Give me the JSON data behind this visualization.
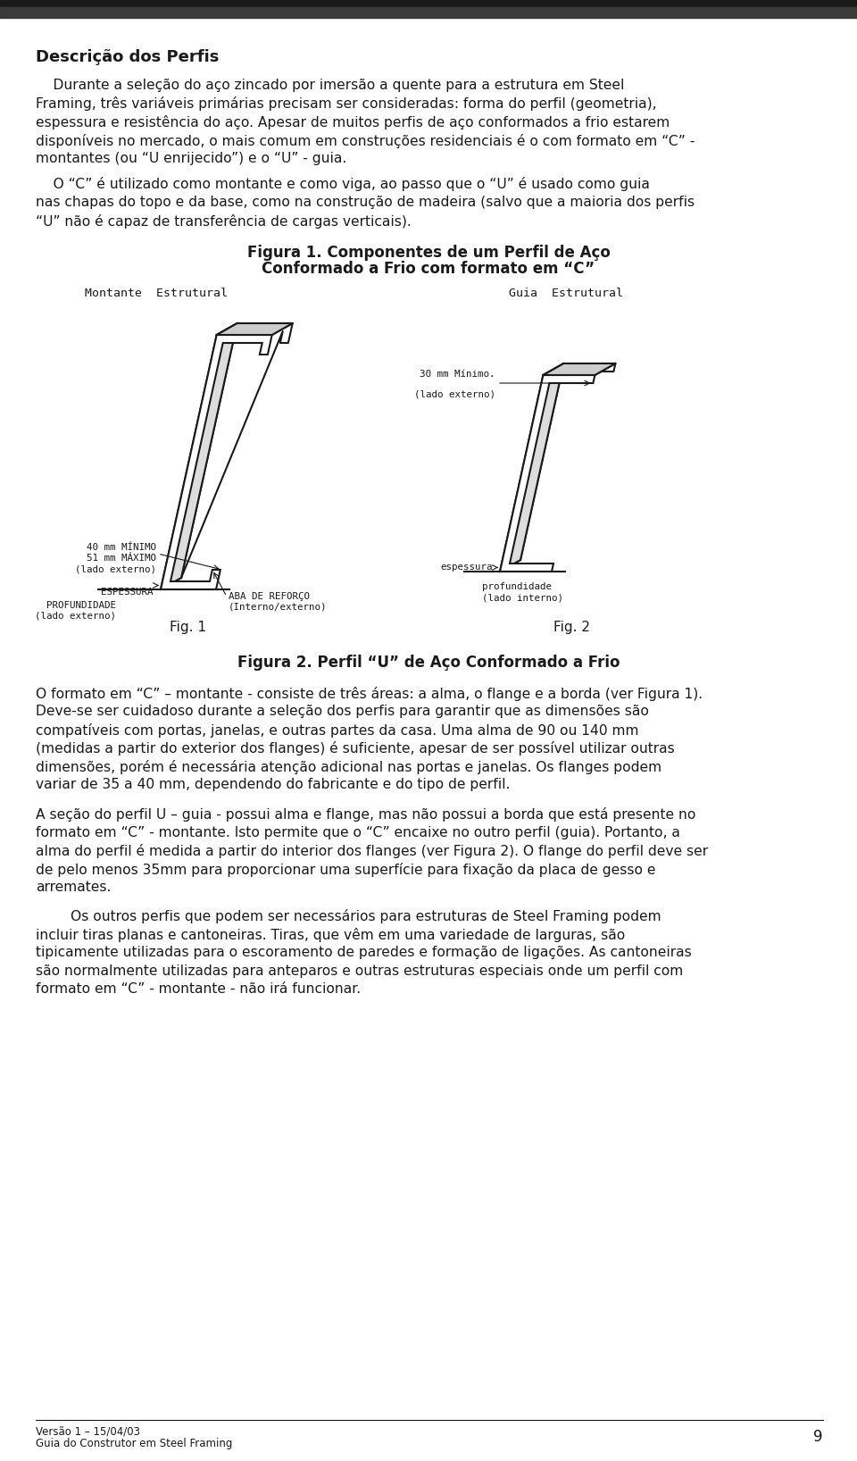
{
  "page_bg": "#ffffff",
  "header_bar_color": "#1a1a1a",
  "title": "Descrição dos Perfis",
  "para1_indent": "    Durante a seleção do aço zincado por imersão a quente para a estrutura em Steel",
  "para1_rest": [
    "Framing, três variáveis primárias precisam ser consideradas: forma do perfil (geometria),",
    "espessura e resistência do aço. Apesar de muitos perfis de aço conformados a frio estarem",
    "disponíveis no mercado, o mais comum em construções residenciais é o com formato em “C” -",
    "montantes (ou “U enrijecido”) e o “U” - guia."
  ],
  "para2_indent": "    O “C” é utilizado como montante e como viga, ao passo que o “U” é usado como guia",
  "para2_rest": [
    "nas chapas do topo e da base, como na construção de madeira (salvo que a maioria dos perfis",
    "“U” não é capaz de transferência de cargas verticais)."
  ],
  "fig_title_line1": "Figura 1. Componentes de um Perfil de Aço",
  "fig_title_line2": "Conformado a Frio com formato em “C”",
  "label_montante": "Montante  Estrutural",
  "label_guia": "Guia  Estrutural",
  "label_fig1": "Fig. 1",
  "label_fig2": "Fig. 2",
  "fig2_title": "Figura 2. Perfil “U” de Aço Conformado a Frio",
  "ann_40mm_line1": "40 mm MÍNIMO",
  "ann_40mm_line2": "51 mm MÁXIMO",
  "ann_40mm_line3": "(lado externo)",
  "ann_aba_line1": "ABA DE REFORÇO",
  "ann_aba_line2": "(Interno/externo)",
  "ann_espessura_c": "ESPESSURA",
  "ann_profundidade_c_line1": "PROFUNDIDADE",
  "ann_profundidade_c_line2": "(lado externo)",
  "ann_30mm_line1": "30 mm Mínimo.",
  "ann_30mm_line2": "(lado externo)",
  "ann_espessura_u": "espessura",
  "ann_profundidade_u_line1": "profundidade",
  "ann_profundidade_u_line2": "(lado interno)",
  "para3": [
    "O formato em “C” – montante - consiste de três áreas: a alma, o flange e a borda (ver Figura 1).",
    "Deve-se ser cuidadoso durante a seleção dos perfis para garantir que as dimensões são",
    "compatíveis com portas, janelas, e outras partes da casa. Uma alma de 90 ou 140 mm",
    "(medidas a partir do exterior dos flanges) é suficiente, apesar de ser possível utilizar outras",
    "dimensões, porém é necessária atenção adicional nas portas e janelas. Os flanges podem",
    "variar de 35 a 40 mm, dependendo do fabricante e do tipo de perfil."
  ],
  "para4": [
    "A seção do perfil U – guia - possui alma e flange, mas não possui a borda que está presente no",
    "formato em “C” - montante. Isto permite que o “C” encaixe no outro perfil (guia). Portanto, a",
    "alma do perfil é medida a partir do interior dos flanges (ver Figura 2). O flange do perfil deve ser",
    "de pelo menos 35mm para proporcionar uma superfície para fixação da placa de gesso e",
    "arremates."
  ],
  "para5_indent": "        Os outros perfis que podem ser necessários para estruturas de Steel Framing podem",
  "para5_rest": [
    "incluir tiras planas e cantoneiras. Tiras, que vêm em uma variedade de larguras, são",
    "tipicamente utilizadas para o escoramento de paredes e formação de ligações. As cantoneiras",
    "são normalmente utilizadas para anteparos e outras estruturas especiais onde um perfil com",
    "formato em “C” - montante - não irá funcionar."
  ],
  "footer_line1": "Versão 1 – 15/04/03",
  "footer_line2": "Guia do Construtor em Steel Framing",
  "footer_page": "9"
}
